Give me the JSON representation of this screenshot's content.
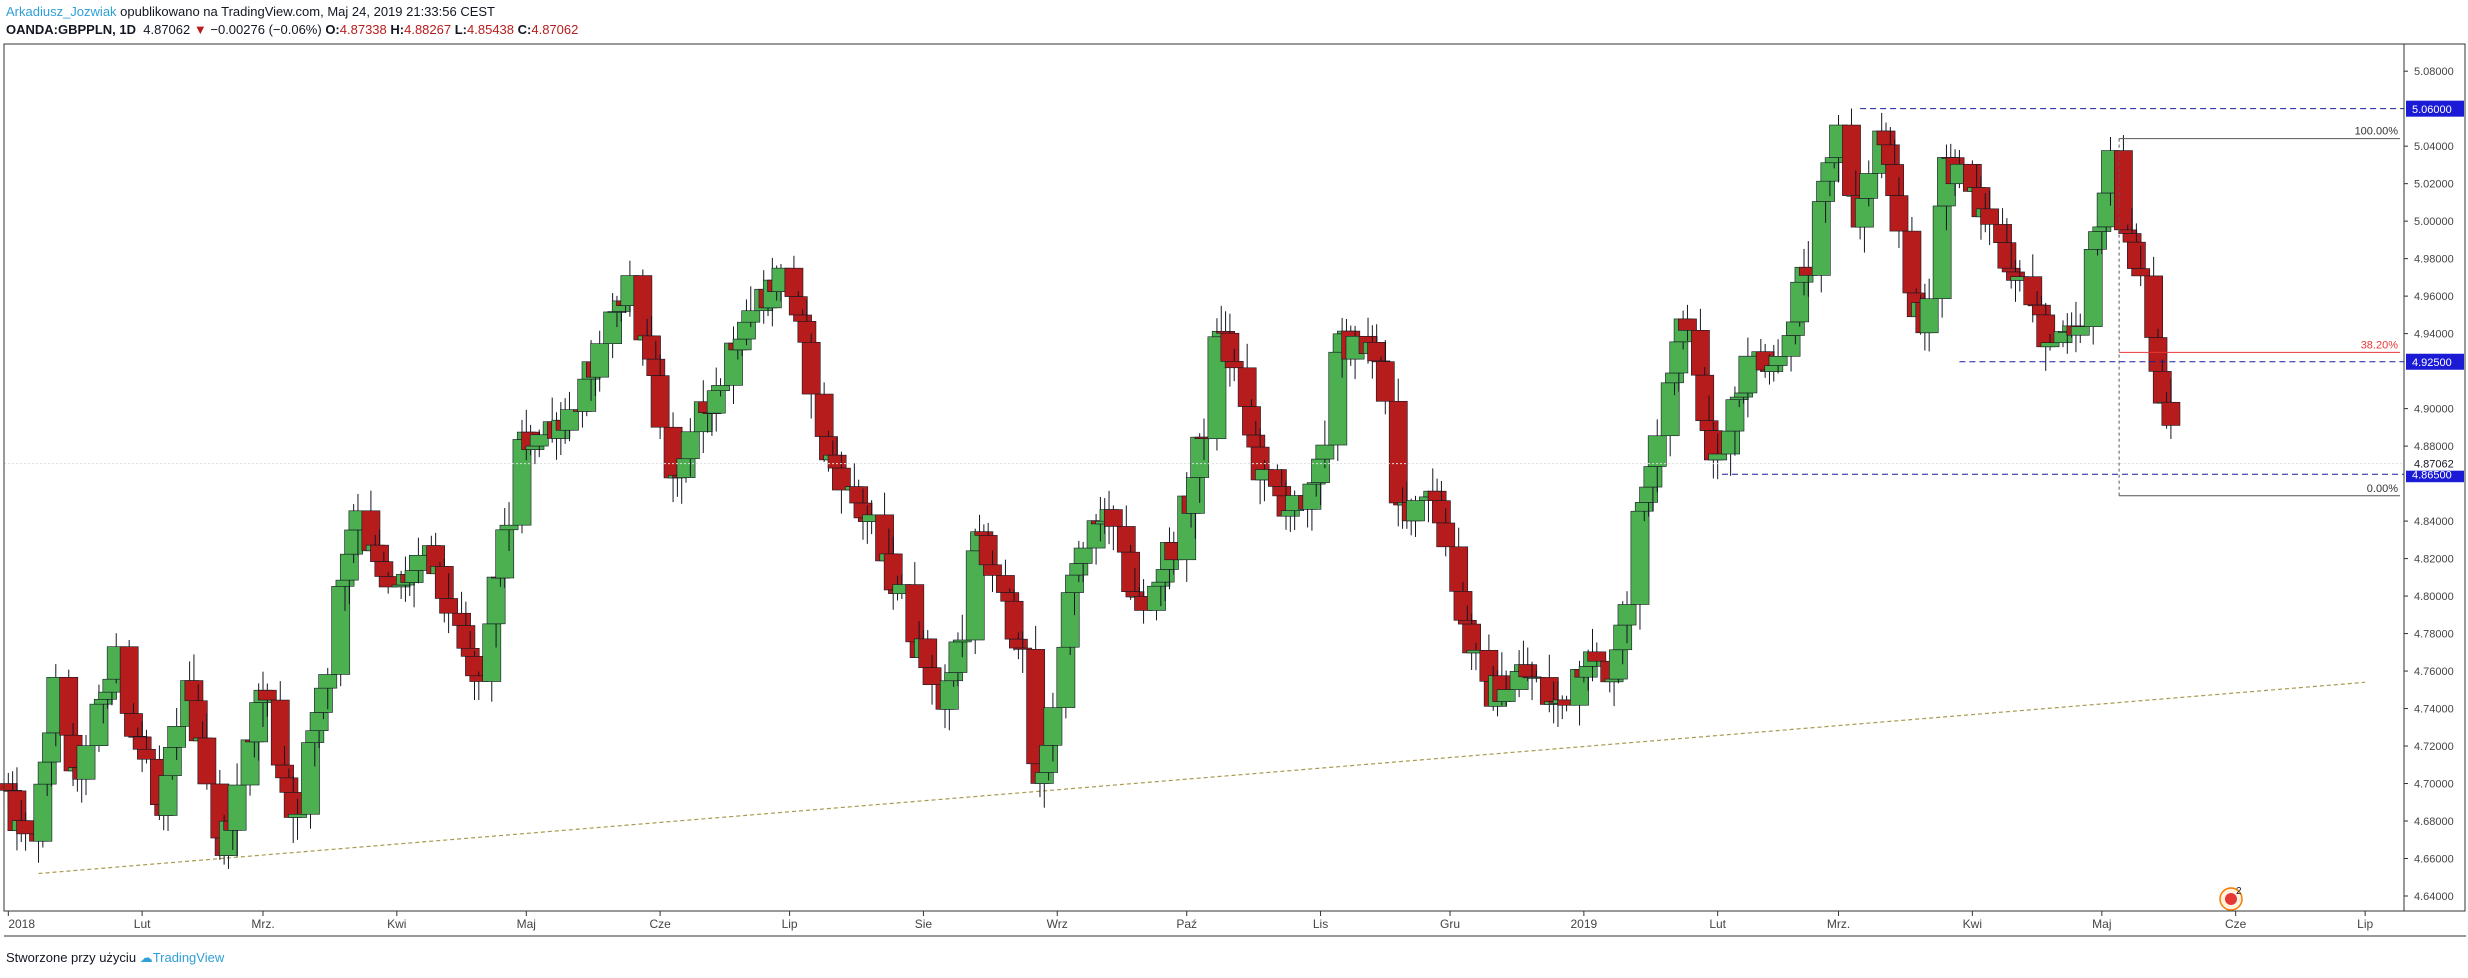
{
  "header": {
    "author": "Arkadiusz_Jozwiak",
    "published_text": "opublikowano na TradingView.com, Maj 24, 2019 21:33:56 CEST",
    "symbol": "OANDA:GBPPLN, 1D",
    "last": "4.87062",
    "change_arrow": "▼",
    "change": "−0.00276 (−0.06%)",
    "o_label": "O:",
    "o_value": "4.87338",
    "h_label": "H:",
    "h_value": "4.88267",
    "l_label": "L:",
    "l_value": "4.85438",
    "c_label": "C:",
    "c_value": "4.87062"
  },
  "footer": {
    "text": "Stworzone przy użyciu",
    "brand": "TradingView"
  },
  "colors": {
    "up": "#4caf50",
    "down": "#b71c1c",
    "wick": "#131722",
    "dashed_level": "#1a1aa0",
    "fib_line": "#555555",
    "fib_red": "#e53935",
    "trendline": "#a89b4e",
    "label_bg": "#1b1bd6",
    "axis_text": "#444444"
  },
  "chart_data": {
    "type": "candlestick",
    "symbol": "OANDA:GBPPLN",
    "timeframe": "1D",
    "ylim": [
      4.632,
      5.0945
    ],
    "y_ticks": [
      "5.08000",
      "5.04000",
      "5.02000",
      "5.00000",
      "4.98000",
      "4.96000",
      "4.94000",
      "4.90000",
      "4.88000",
      "4.84000",
      "4.82000",
      "4.80000",
      "4.78000",
      "4.76000",
      "4.74000",
      "4.72000",
      "4.70000",
      "4.68000",
      "4.66000",
      "4.64000"
    ],
    "x_ticks": [
      {
        "label": "2018",
        "day": 0
      },
      {
        "label": "Lut",
        "day": 31
      },
      {
        "label": "Mrz.",
        "day": 59
      },
      {
        "label": "Kwi",
        "day": 90
      },
      {
        "label": "Maj",
        "day": 120
      },
      {
        "label": "Cze",
        "day": 151
      },
      {
        "label": "Lip",
        "day": 181
      },
      {
        "label": "Sie",
        "day": 212
      },
      {
        "label": "Wrz",
        "day": 243
      },
      {
        "label": "Paź",
        "day": 273
      },
      {
        "label": "Lis",
        "day": 304
      },
      {
        "label": "Gru",
        "day": 334
      },
      {
        "label": "2019",
        "day": 365
      },
      {
        "label": "Lut",
        "day": 396
      },
      {
        "label": "Mrz.",
        "day": 424
      },
      {
        "label": "Kwi",
        "day": 455
      },
      {
        "label": "Maj",
        "day": 485
      },
      {
        "label": "Cze",
        "day": 516
      },
      {
        "label": "Lip",
        "day": 546
      }
    ],
    "price_path": [
      {
        "day": 0,
        "price": 4.7
      },
      {
        "day": 7,
        "price": 4.655
      },
      {
        "day": 12,
        "price": 4.75
      },
      {
        "day": 17,
        "price": 4.7
      },
      {
        "day": 26,
        "price": 4.765
      },
      {
        "day": 37,
        "price": 4.68
      },
      {
        "day": 42,
        "price": 4.76
      },
      {
        "day": 51,
        "price": 4.665
      },
      {
        "day": 60,
        "price": 4.75
      },
      {
        "day": 68,
        "price": 4.68
      },
      {
        "day": 82,
        "price": 4.85
      },
      {
        "day": 89,
        "price": 4.8
      },
      {
        "day": 99,
        "price": 4.82
      },
      {
        "day": 110,
        "price": 4.75
      },
      {
        "day": 120,
        "price": 4.88
      },
      {
        "day": 133,
        "price": 4.9
      },
      {
        "day": 146,
        "price": 4.97
      },
      {
        "day": 155,
        "price": 4.86
      },
      {
        "day": 163,
        "price": 4.9
      },
      {
        "day": 172,
        "price": 4.95
      },
      {
        "day": 182,
        "price": 4.975
      },
      {
        "day": 190,
        "price": 4.88
      },
      {
        "day": 198,
        "price": 4.85
      },
      {
        "day": 208,
        "price": 4.8
      },
      {
        "day": 218,
        "price": 4.74
      },
      {
        "day": 226,
        "price": 4.83
      },
      {
        "day": 235,
        "price": 4.78
      },
      {
        "day": 240,
        "price": 4.695
      },
      {
        "day": 248,
        "price": 4.81
      },
      {
        "day": 255,
        "price": 4.845
      },
      {
        "day": 264,
        "price": 4.79
      },
      {
        "day": 275,
        "price": 4.85
      },
      {
        "day": 282,
        "price": 4.945
      },
      {
        "day": 292,
        "price": 4.86
      },
      {
        "day": 302,
        "price": 4.84
      },
      {
        "day": 310,
        "price": 4.935
      },
      {
        "day": 319,
        "price": 4.93
      },
      {
        "day": 322,
        "price": 4.84
      },
      {
        "day": 331,
        "price": 4.86
      },
      {
        "day": 343,
        "price": 4.745
      },
      {
        "day": 352,
        "price": 4.76
      },
      {
        "day": 360,
        "price": 4.74
      },
      {
        "day": 367,
        "price": 4.77
      },
      {
        "day": 372,
        "price": 4.75
      },
      {
        "day": 383,
        "price": 4.89
      },
      {
        "day": 390,
        "price": 4.95
      },
      {
        "day": 396,
        "price": 4.87
      },
      {
        "day": 405,
        "price": 4.93
      },
      {
        "day": 411,
        "price": 4.925
      },
      {
        "day": 420,
        "price": 4.99
      },
      {
        "day": 425,
        "price": 5.05
      },
      {
        "day": 430,
        "price": 5.0
      },
      {
        "day": 435,
        "price": 5.05
      },
      {
        "day": 440,
        "price": 4.98
      },
      {
        "day": 445,
        "price": 4.94
      },
      {
        "day": 450,
        "price": 5.035
      },
      {
        "day": 460,
        "price": 5.0
      },
      {
        "day": 468,
        "price": 4.965
      },
      {
        "day": 475,
        "price": 4.93
      },
      {
        "day": 481,
        "price": 4.94
      },
      {
        "day": 488,
        "price": 5.03
      },
      {
        "day": 495,
        "price": 4.97
      },
      {
        "day": 503,
        "price": 4.87062
      }
    ],
    "last_candle": {
      "open": 4.87338,
      "high": 4.88267,
      "low": 4.85438,
      "close": 4.87062
    },
    "horizontal_levels": [
      {
        "label": "5.06000",
        "value": 5.06,
        "style": "dashed",
        "from_day": 429
      },
      {
        "label": "4.92500",
        "value": 4.925,
        "style": "dashed",
        "from_day": 452
      },
      {
        "label": "4.86500",
        "value": 4.865,
        "style": "dashed",
        "from_day": 397
      }
    ],
    "current_price_label": "4.87062",
    "fibonacci": [
      {
        "label": "100.00%",
        "value": 5.044
      },
      {
        "label": "38.20%",
        "value": 4.93
      },
      {
        "label": "0.00%",
        "value": 4.8535
      }
    ],
    "fib_start_day": 489,
    "trendline": {
      "from": {
        "day": 7,
        "price": 4.652
      },
      "to": {
        "day": 546,
        "price": 4.754
      }
    },
    "title": "",
    "xlabel": "",
    "ylabel": ""
  }
}
